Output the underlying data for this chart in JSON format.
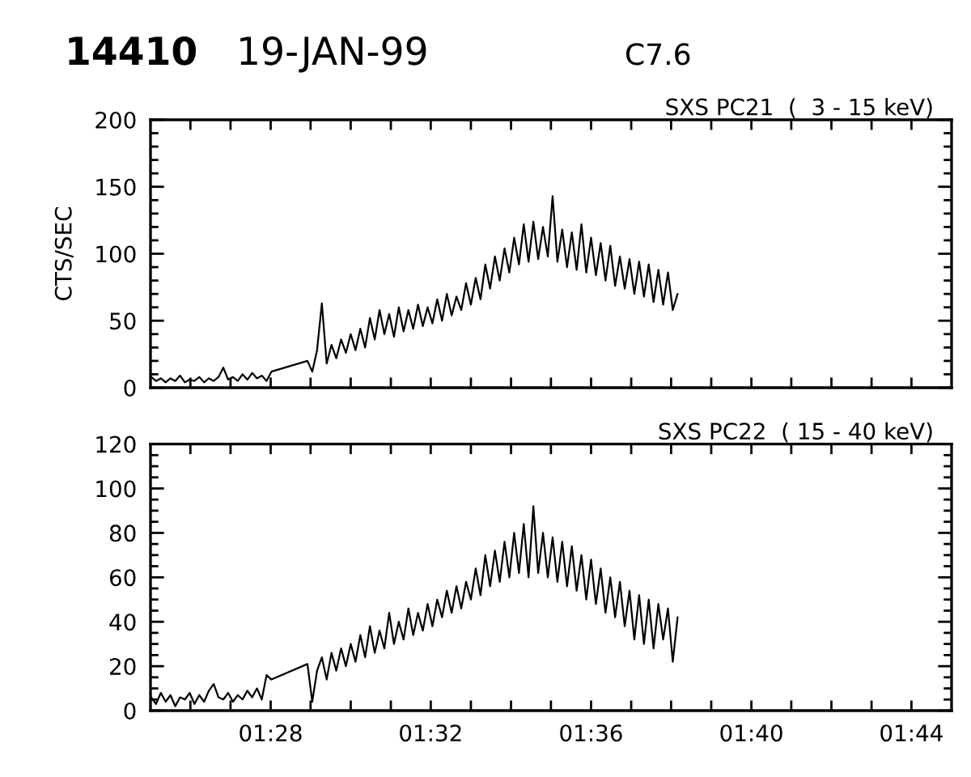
{
  "chart_data": [
    {
      "type": "line",
      "title": "SXS PC21  (  3 - 15 keV)",
      "ylabel": "CTS/SEC",
      "annotations": [
        "14410",
        "19-JAN-99",
        "C7.6"
      ],
      "color": "#000000",
      "tick_labels": "y",
      "x": [
        1.417,
        1.419,
        1.421,
        1.423,
        1.425,
        1.427,
        1.429,
        1.431,
        1.433,
        1.435,
        1.437,
        1.439,
        1.441,
        1.443,
        1.445,
        1.447,
        1.449,
        1.451,
        1.453,
        1.455,
        1.457,
        1.459,
        1.461,
        1.463,
        1.465,
        1.467,
        1.482,
        1.484,
        1.486,
        1.488,
        1.49,
        1.492,
        1.494,
        1.496,
        1.498,
        1.5,
        1.502,
        1.504,
        1.506,
        1.508,
        1.51,
        1.512,
        1.514,
        1.516,
        1.518,
        1.52,
        1.522,
        1.524,
        1.526,
        1.528,
        1.53,
        1.532,
        1.534,
        1.536,
        1.538,
        1.54,
        1.542,
        1.544,
        1.546,
        1.548,
        1.55,
        1.552,
        1.554,
        1.556,
        1.558,
        1.56,
        1.562,
        1.564,
        1.566,
        1.568,
        1.57,
        1.572,
        1.574,
        1.576,
        1.578,
        1.58,
        1.582,
        1.584,
        1.586,
        1.588,
        1.59,
        1.592,
        1.594,
        1.596,
        1.598,
        1.6,
        1.602,
        1.604,
        1.606,
        1.608,
        1.61,
        1.612,
        1.614,
        1.616,
        1.618,
        1.62,
        1.622,
        1.624,
        1.626,
        1.628,
        1.63,
        1.632,
        1.634,
        1.636
      ],
      "values": [
        8,
        5,
        7,
        4,
        7,
        5,
        9,
        4,
        6,
        5,
        8,
        4,
        7,
        5,
        8,
        15,
        6,
        8,
        5,
        10,
        6,
        11,
        7,
        9,
        5,
        12,
        20,
        12,
        28,
        63,
        18,
        32,
        22,
        36,
        26,
        40,
        28,
        44,
        30,
        52,
        36,
        58,
        40,
        55,
        38,
        60,
        42,
        58,
        44,
        62,
        46,
        60,
        48,
        66,
        50,
        70,
        54,
        68,
        58,
        78,
        62,
        82,
        66,
        92,
        74,
        98,
        80,
        104,
        86,
        112,
        92,
        122,
        94,
        124,
        96,
        120,
        98,
        143,
        94,
        118,
        90,
        116,
        88,
        122,
        86,
        112,
        84,
        108,
        80,
        106,
        76,
        98,
        74,
        96,
        70,
        94,
        68,
        92,
        64,
        88,
        62,
        86,
        58,
        70
      ],
      "xlim": [
        1.4167,
        1.75
      ],
      "xticks": [
        {
          "value": 1.4333,
          "label": null
        },
        {
          "value": 1.45,
          "label": null
        },
        {
          "value": 1.4667,
          "label": null
        },
        {
          "value": 1.4833,
          "label": null
        },
        {
          "value": 1.5,
          "label": null
        },
        {
          "value": 1.5167,
          "label": null
        },
        {
          "value": 1.5333,
          "label": null
        },
        {
          "value": 1.55,
          "label": null
        },
        {
          "value": 1.5667,
          "label": null
        },
        {
          "value": 1.5833,
          "label": null
        },
        {
          "value": 1.6,
          "label": null
        },
        {
          "value": 1.6167,
          "label": null
        },
        {
          "value": 1.6333,
          "label": null
        },
        {
          "value": 1.65,
          "label": null
        },
        {
          "value": 1.6667,
          "label": null
        },
        {
          "value": 1.6833,
          "label": null
        },
        {
          "value": 1.7,
          "label": null
        },
        {
          "value": 1.7167,
          "label": null
        },
        {
          "value": 1.7333,
          "label": null
        }
      ],
      "ylim": [
        0,
        200
      ],
      "yticks": [
        0,
        {
          "value": 10,
          "label": null
        },
        {
          "value": 20,
          "label": null
        },
        {
          "value": 30,
          "label": null
        },
        {
          "value": 40,
          "label": null
        },
        50,
        {
          "value": 60,
          "label": null
        },
        {
          "value": 70,
          "label": null
        },
        {
          "value": 80,
          "label": null
        },
        {
          "value": 90,
          "label": null
        },
        100,
        {
          "value": 110,
          "label": null
        },
        {
          "value": 120,
          "label": null
        },
        {
          "value": 130,
          "label": null
        },
        {
          "value": 140,
          "label": null
        },
        150,
        {
          "value": 160,
          "label": null
        },
        {
          "value": 170,
          "label": null
        },
        {
          "value": 180,
          "label": null
        },
        {
          "value": 190,
          "label": null
        },
        200
      ]
    },
    {
      "type": "line",
      "title": "SXS PC22  ( 15 - 40 keV)",
      "color": "#000000",
      "x": [
        1.417,
        1.419,
        1.421,
        1.423,
        1.425,
        1.427,
        1.429,
        1.431,
        1.433,
        1.435,
        1.437,
        1.439,
        1.441,
        1.443,
        1.445,
        1.447,
        1.449,
        1.451,
        1.453,
        1.455,
        1.457,
        1.459,
        1.461,
        1.463,
        1.465,
        1.467,
        1.482,
        1.484,
        1.486,
        1.488,
        1.49,
        1.492,
        1.494,
        1.496,
        1.498,
        1.5,
        1.502,
        1.504,
        1.506,
        1.508,
        1.51,
        1.512,
        1.514,
        1.516,
        1.518,
        1.52,
        1.522,
        1.524,
        1.526,
        1.528,
        1.53,
        1.532,
        1.534,
        1.536,
        1.538,
        1.54,
        1.542,
        1.544,
        1.546,
        1.548,
        1.55,
        1.552,
        1.554,
        1.556,
        1.558,
        1.56,
        1.562,
        1.564,
        1.566,
        1.568,
        1.57,
        1.572,
        1.574,
        1.576,
        1.578,
        1.58,
        1.582,
        1.584,
        1.586,
        1.588,
        1.59,
        1.592,
        1.594,
        1.596,
        1.598,
        1.6,
        1.602,
        1.604,
        1.606,
        1.608,
        1.61,
        1.612,
        1.614,
        1.616,
        1.618,
        1.62,
        1.622,
        1.624,
        1.626,
        1.628,
        1.63,
        1.632,
        1.634,
        1.636
      ],
      "values": [
        6,
        3,
        8,
        4,
        7,
        2,
        6,
        5,
        8,
        3,
        7,
        4,
        9,
        12,
        6,
        5,
        8,
        4,
        7,
        5,
        9,
        6,
        10,
        5,
        16,
        14,
        21,
        4,
        18,
        24,
        14,
        26,
        18,
        28,
        20,
        30,
        22,
        34,
        24,
        38,
        26,
        36,
        28,
        44,
        30,
        40,
        32,
        46,
        34,
        44,
        36,
        48,
        38,
        50,
        42,
        54,
        44,
        56,
        46,
        58,
        50,
        64,
        52,
        70,
        56,
        72,
        58,
        76,
        60,
        80,
        62,
        84,
        60,
        92,
        62,
        80,
        60,
        78,
        58,
        76,
        56,
        74,
        54,
        70,
        50,
        68,
        48,
        64,
        44,
        60,
        42,
        58,
        38,
        54,
        32,
        52,
        30,
        50,
        28,
        48,
        32,
        46,
        22,
        42
      ],
      "xlim": [
        1.4167,
        1.75
      ],
      "xticks": [
        {
          "value": 1.4333,
          "label": null
        },
        {
          "value": 1.45,
          "label": null
        },
        {
          "value": 1.4667,
          "label": "01:28"
        },
        {
          "value": 1.4833,
          "label": null
        },
        {
          "value": 1.5,
          "label": null
        },
        {
          "value": 1.5167,
          "label": null
        },
        {
          "value": 1.5333,
          "label": "01:32"
        },
        {
          "value": 1.55,
          "label": null
        },
        {
          "value": 1.5667,
          "label": null
        },
        {
          "value": 1.5833,
          "label": null
        },
        {
          "value": 1.6,
          "label": "01:36"
        },
        {
          "value": 1.6167,
          "label": null
        },
        {
          "value": 1.6333,
          "label": null
        },
        {
          "value": 1.65,
          "label": null
        },
        {
          "value": 1.6667,
          "label": "01:40"
        },
        {
          "value": 1.6833,
          "label": null
        },
        {
          "value": 1.7,
          "label": null
        },
        {
          "value": 1.7167,
          "label": null
        },
        {
          "value": 1.7333,
          "label": "01:44"
        }
      ],
      "ylim": [
        0,
        120
      ],
      "yticks": [
        0,
        {
          "value": 5,
          "label": null
        },
        {
          "value": 10,
          "label": null
        },
        {
          "value": 15,
          "label": null
        },
        20,
        {
          "value": 25,
          "label": null
        },
        {
          "value": 30,
          "label": null
        },
        {
          "value": 35,
          "label": null
        },
        40,
        {
          "value": 45,
          "label": null
        },
        {
          "value": 50,
          "label": null
        },
        {
          "value": 55,
          "label": null
        },
        60,
        {
          "value": 65,
          "label": null
        },
        {
          "value": 70,
          "label": null
        },
        {
          "value": 75,
          "label": null
        },
        80,
        {
          "value": 85,
          "label": null
        },
        {
          "value": 90,
          "label": null
        },
        {
          "value": 95,
          "label": null
        },
        100,
        {
          "value": 105,
          "label": null
        },
        {
          "value": 110,
          "label": null
        },
        {
          "value": 115,
          "label": null
        },
        120
      ]
    }
  ]
}
